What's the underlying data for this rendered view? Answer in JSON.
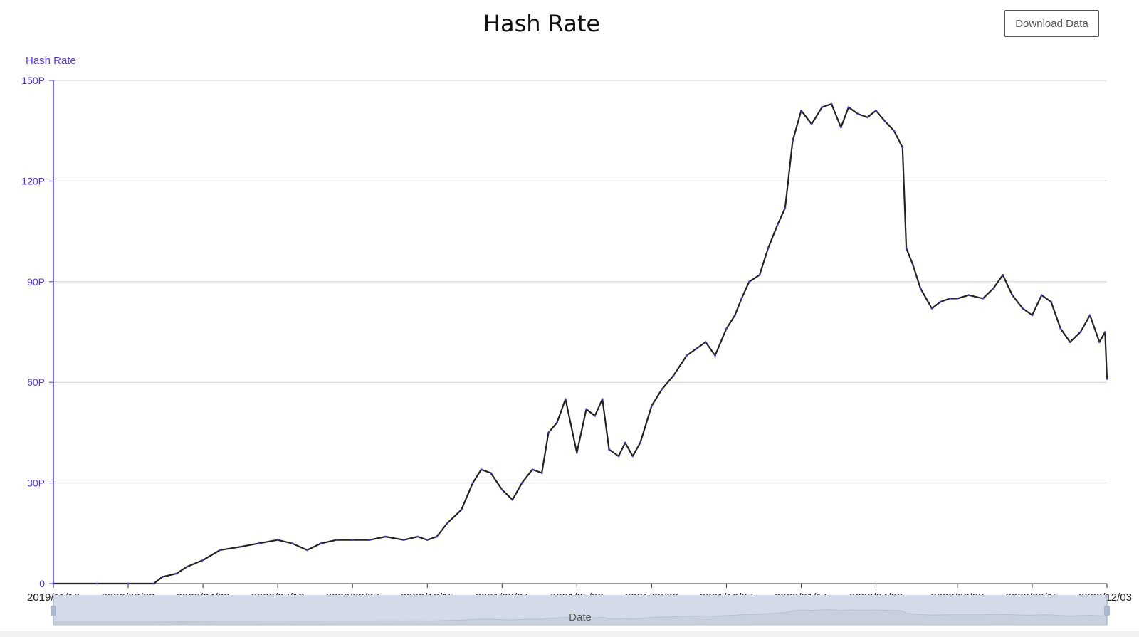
{
  "header": {
    "title": "Hash Rate",
    "download_label": "Download Data"
  },
  "colors": {
    "line": "#222222",
    "y_axis": "#5533ee",
    "grid": "#d0d0d0",
    "zoom_fill": "#d4dbe8",
    "zoom_handle": "#a9b7cc"
  },
  "chart_data": {
    "type": "line",
    "title": "Hash Rate",
    "ylabel": "Hash Rate",
    "xlabel": "Date",
    "ylim": [
      0,
      150
    ],
    "yunit_suffix": "P",
    "yticks": [
      0,
      30,
      60,
      90,
      120,
      150
    ],
    "ytick_labels": [
      "0",
      "30P",
      "60P",
      "90P",
      "120P",
      "150P"
    ],
    "xlim": [
      "2019/11/16",
      "2022/12/03"
    ],
    "xticks": [
      "2019/11/16",
      "2020/02/03",
      "2020/04/22",
      "2020/07/10",
      "2020/09/27",
      "2020/12/15",
      "2021/03/04",
      "2021/05/22",
      "2021/08/09",
      "2021/10/27",
      "2022/01/14",
      "2022/04/03",
      "2022/06/28",
      "2022/09/15",
      "2022/12/03"
    ],
    "grid": true,
    "legend": "none",
    "zoom_slider": true,
    "series": [
      {
        "x": [
          "2019/11/16",
          "2020/01/01",
          "2020/02/03",
          "2020/03/01",
          "2020/03/10",
          "2020/03/25",
          "2020/04/05",
          "2020/04/22",
          "2020/05/10",
          "2020/06/01",
          "2020/06/20",
          "2020/07/10",
          "2020/07/25",
          "2020/08/10",
          "2020/08/25",
          "2020/09/10",
          "2020/09/27",
          "2020/10/15",
          "2020/11/01",
          "2020/11/20",
          "2020/12/05",
          "2020/12/15",
          "2020/12/25",
          "2021/01/05",
          "2021/01/20",
          "2021/02/01",
          "2021/02/10",
          "2021/02/20",
          "2021/03/04",
          "2021/03/15",
          "2021/03/25",
          "2021/04/05",
          "2021/04/15",
          "2021/04/22",
          "2021/05/01",
          "2021/05/10",
          "2021/05/22",
          "2021/06/01",
          "2021/06/10",
          "2021/06/18",
          "2021/06/25",
          "2021/07/05",
          "2021/07/12",
          "2021/07/20",
          "2021/07/28",
          "2021/08/09",
          "2021/08/20",
          "2021/09/01",
          "2021/09/15",
          "2021/09/25",
          "2021/10/05",
          "2021/10/15",
          "2021/10/27",
          "2021/11/05",
          "2021/11/12",
          "2021/11/20",
          "2021/12/01",
          "2021/12/10",
          "2021/12/20",
          "2021/12/28",
          "2022/01/05",
          "2022/01/14",
          "2022/01/25",
          "2022/02/05",
          "2022/02/15",
          "2022/02/25",
          "2022/03/05",
          "2022/03/15",
          "2022/03/25",
          "2022/04/03",
          "2022/04/12",
          "2022/04/22",
          "2022/05/01",
          "2022/05/05",
          "2022/05/12",
          "2022/05/20",
          "2022/06/01",
          "2022/06/10",
          "2022/06/20",
          "2022/06/28",
          "2022/07/10",
          "2022/07/25",
          "2022/08/05",
          "2022/08/15",
          "2022/08/25",
          "2022/09/05",
          "2022/09/15",
          "2022/09/25",
          "2022/10/05",
          "2022/10/15",
          "2022/10/25",
          "2022/11/05",
          "2022/11/15",
          "2022/11/25",
          "2022/12/01",
          "2022/12/03"
        ],
        "y": [
          0,
          0,
          0,
          0,
          2,
          3,
          5,
          7,
          10,
          11,
          12,
          13,
          12,
          10,
          12,
          13,
          13,
          13,
          14,
          13,
          14,
          13,
          14,
          18,
          22,
          30,
          34,
          33,
          28,
          25,
          30,
          34,
          33,
          45,
          48,
          55,
          39,
          52,
          50,
          55,
          40,
          38,
          42,
          38,
          42,
          53,
          58,
          62,
          68,
          70,
          72,
          68,
          76,
          80,
          85,
          90,
          92,
          100,
          107,
          112,
          132,
          141,
          137,
          142,
          143,
          136,
          142,
          140,
          139,
          141,
          138,
          135,
          130,
          100,
          95,
          88,
          82,
          84,
          85,
          85,
          86,
          85,
          88,
          92,
          86,
          82,
          80,
          86,
          84,
          76,
          72,
          75,
          80,
          72,
          75,
          61
        ]
      }
    ]
  }
}
